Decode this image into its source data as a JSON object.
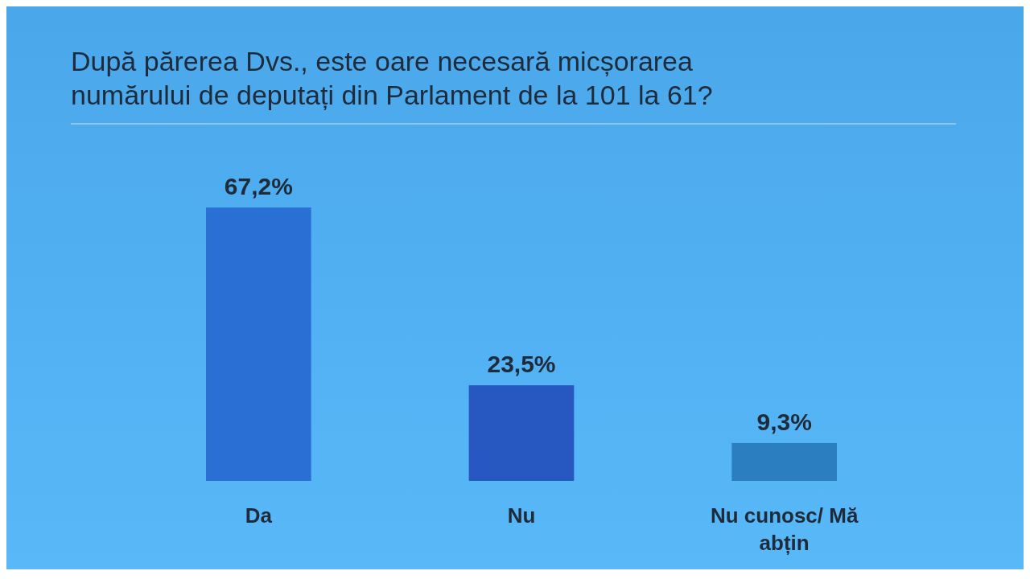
{
  "chart_data": {
    "type": "bar",
    "title": "După părerea Dvs., este oare necesară micșorarea numărului de deputați din Parlament de la 101 la 61?",
    "categories": [
      "Da",
      "Nu",
      "Nu cunosc/ Mă abțin"
    ],
    "values": [
      67.2,
      23.5,
      9.3
    ],
    "value_labels": [
      "67,2%",
      "23,5%",
      "9,3%"
    ],
    "colors": [
      "#2a6fd4",
      "#2757c0",
      "#2b7fc0"
    ]
  }
}
